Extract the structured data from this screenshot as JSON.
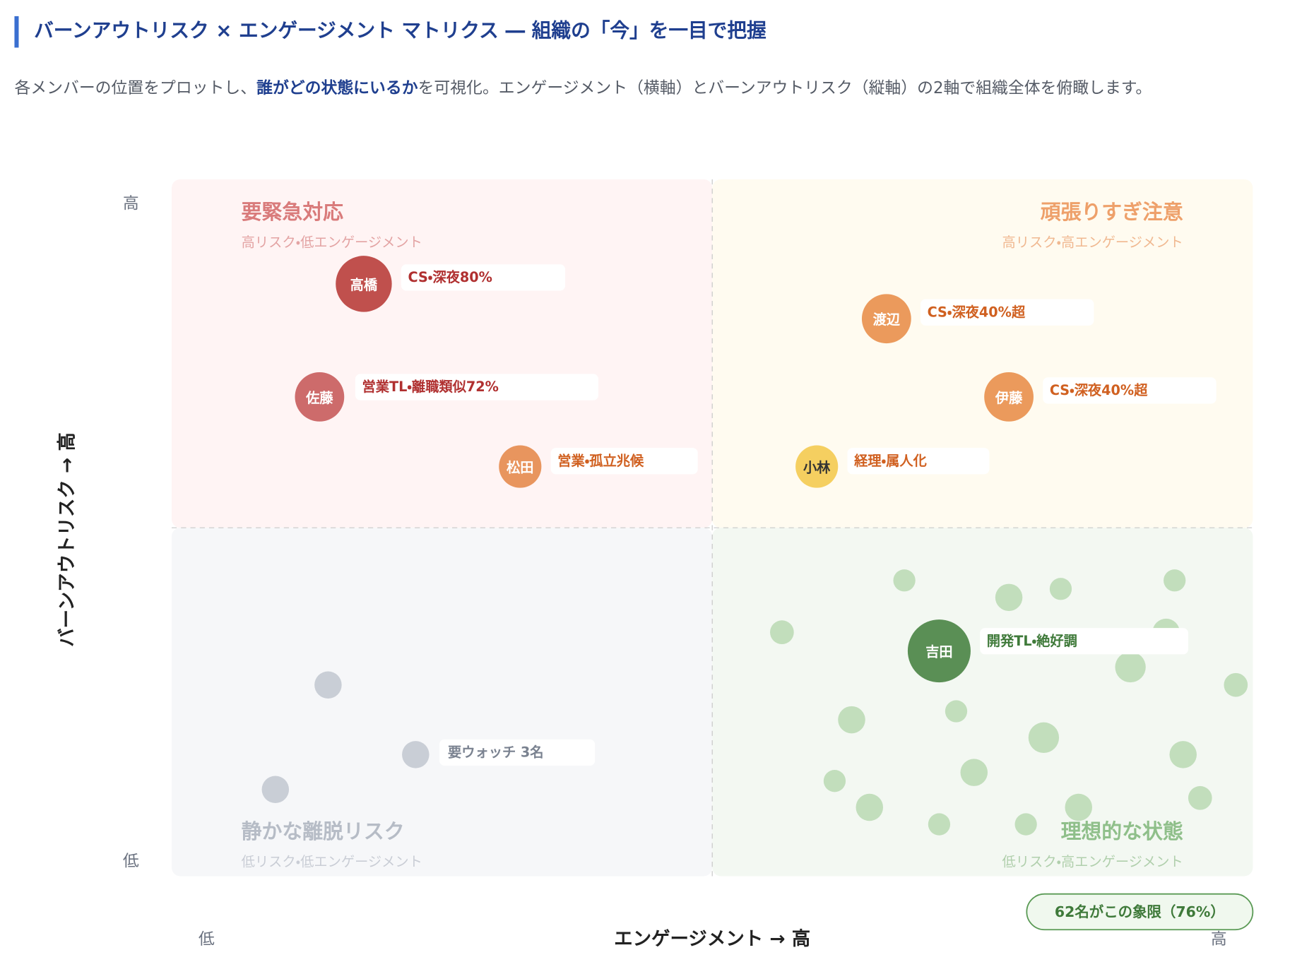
{
  "header": {
    "title": "バーンアウトリスク × エンゲージメント マトリクス ― 組織の「今」を一目で把握",
    "subtitle": {
      "before": "各メンバーの位置をプロットし、",
      "emphasis": "誰がどの状態にいるか",
      "after": "を可視化。エンゲージメント（横軸）とバーンアウトリスク（縦軸）の2軸で組織全体を俯瞰します。"
    }
  },
  "axes": {
    "y_title": "バーンアウトリスク → 高",
    "y_high": "高",
    "y_low": "低",
    "x_title": "エンゲージメント → 高",
    "x_low": "低",
    "x_high": "高"
  },
  "quadrants": [
    {
      "title": "要緊急対応",
      "subtitle": "高リスク・低エンゲージメント"
    },
    {
      "title": "頑張りすぎ注意",
      "subtitle": "高リスク・高エンゲージメント"
    },
    {
      "title": "静かな離脱リスク",
      "subtitle": "低リスク・低エンゲージメント"
    },
    {
      "title": "理想的な状態",
      "subtitle": "低リスク・高エンゲージメント"
    }
  ],
  "people": [
    {
      "name": "高橋",
      "note": "CS・深夜80%"
    },
    {
      "name": "佐藤",
      "note": "営業TL・離職類似72%"
    },
    {
      "name": "松田",
      "note": "営業・孤立兆候"
    },
    {
      "name": "渡辺",
      "note": "CS・深夜40%超"
    },
    {
      "name": "伊藤",
      "note": "CS・深夜40%超"
    },
    {
      "name": "小林",
      "note": "経理・属人化"
    },
    {
      "name": "吉田",
      "note": "開発TL・絶好調"
    }
  ],
  "watch_group": {
    "label": "要ウォッチ 3名"
  },
  "summary_badge": "62名がこの象限（76%）"
}
